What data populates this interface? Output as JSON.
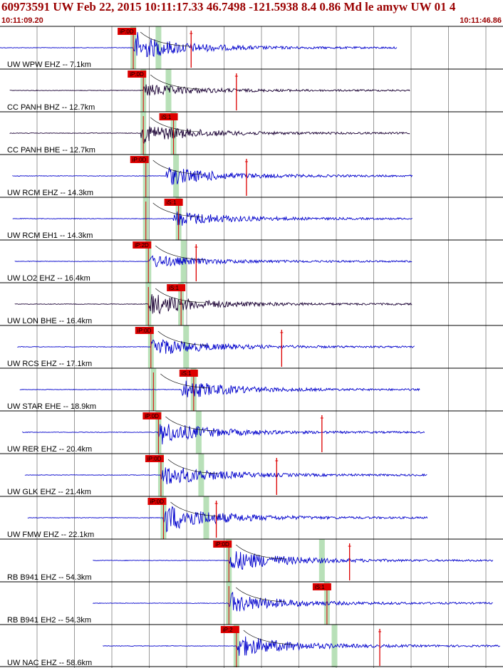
{
  "header": {
    "title": "60973591 UW Feb 22, 2015 10:11:17.33   46.7498 -121.5938  8.4 0.86 Md le amyw UW 01    4",
    "start_time": "10:11:09.20",
    "end_time": "10:11:46.86"
  },
  "colors": {
    "trace_vertical": "#0000cc",
    "trace_broadband": "#1a0033",
    "pick": "#dd0000",
    "window": "#b8e0b8",
    "grid": "#000000",
    "header_text": "#9a0000"
  },
  "chart_data": {
    "type": "seismogram",
    "time_window": [
      "10:11:09.20",
      "10:11:46.86"
    ],
    "grid": "vertical every ~1.3 s",
    "traces": [
      {
        "label": "UW WPW EHZ -- 7.1km",
        "color": "blue",
        "start": 0.0,
        "end": 0.79,
        "p_pick": "iP:0D",
        "p_time": 0.265,
        "s_time": 0.315,
        "onset": 0.265,
        "amp": 16,
        "event": 0.38
      },
      {
        "label": "CC PANH BHZ -- 12.7km",
        "color": "dark",
        "start": 0.02,
        "end": 0.815,
        "p_pick": "iP:0D",
        "p_time": 0.285,
        "s_time": 0.335,
        "onset": 0.285,
        "amp": 8,
        "event": 0.47
      },
      {
        "label": "CC PANH BHE -- 12.7km",
        "color": "dark",
        "start": 0.02,
        "end": 0.815,
        "p_pick": "iS:1",
        "p_time": 0.285,
        "s_time": 0.345,
        "onset": 0.28,
        "amp": 12,
        "event": null
      },
      {
        "label": "UW RCM EHZ -- 14.3km",
        "color": "blue",
        "start": 0.025,
        "end": 0.82,
        "p_pick": "iP:0D",
        "p_time": 0.29,
        "s_time": 0.35,
        "onset": 0.33,
        "amp": 12,
        "event": 0.49
      },
      {
        "label": "UW RCM EH1 -- 14.3km",
        "color": "blue",
        "start": 0.025,
        "end": 0.82,
        "p_pick": "iS:1",
        "p_time": 0.29,
        "s_time": 0.355,
        "onset": 0.345,
        "amp": 10,
        "event": null
      },
      {
        "label": "UW LO2 EHZ -- 16.4km",
        "color": "blue",
        "start": 0.03,
        "end": 0.82,
        "p_pick": "iP:2D",
        "p_time": 0.295,
        "s_time": 0.365,
        "onset": 0.295,
        "amp": 8,
        "event": 0.39
      },
      {
        "label": "UW LON BHE -- 16.4km",
        "color": "dark",
        "start": 0.03,
        "end": 0.82,
        "p_pick": "iS:1",
        "p_time": 0.295,
        "s_time": 0.36,
        "onset": 0.295,
        "amp": 14,
        "event": null
      },
      {
        "label": "UW RCS EHZ -- 17.1km",
        "color": "blue",
        "start": 0.035,
        "end": 0.825,
        "p_pick": "iP:0D",
        "p_time": 0.3,
        "s_time": 0.37,
        "onset": 0.3,
        "amp": 12,
        "event": 0.56
      },
      {
        "label": "UW STAR EHE -- 18.9km",
        "color": "blue",
        "start": 0.04,
        "end": 0.835,
        "p_pick": "iS:1",
        "p_time": 0.305,
        "s_time": 0.385,
        "onset": 0.36,
        "amp": 12,
        "event": null
      },
      {
        "label": "UW RER EHZ -- 20.4km",
        "color": "blue",
        "start": 0.045,
        "end": 0.845,
        "p_pick": "iP:0D",
        "p_time": 0.315,
        "s_time": 0.395,
        "onset": 0.315,
        "amp": 14,
        "event": 0.64
      },
      {
        "label": "UW GLK EHZ -- 21.4km",
        "color": "blue",
        "start": 0.05,
        "end": 0.85,
        "p_pick": "iP:0D",
        "p_time": 0.32,
        "s_time": 0.4,
        "onset": 0.32,
        "amp": 14,
        "event": 0.55
      },
      {
        "label": "UW FMW EHZ -- 22.1km",
        "color": "blue",
        "start": 0.055,
        "end": 0.85,
        "p_pick": "iP:0D",
        "p_time": 0.325,
        "s_time": 0.41,
        "onset": 0.325,
        "amp": 18,
        "event": 0.43
      },
      {
        "label": "RB B941 EHZ -- 54.3km",
        "color": "blue",
        "start": 0.185,
        "end": 0.98,
        "p_pick": "iP:0D",
        "p_time": 0.455,
        "s_time": 0.64,
        "onset": 0.455,
        "amp": 14,
        "event": 0.695
      },
      {
        "label": "RB B941 EH2 -- 54.3km",
        "color": "blue",
        "start": 0.185,
        "end": 0.98,
        "p_pick": "iS:1",
        "p_time": 0.455,
        "s_time": 0.65,
        "onset": 0.455,
        "amp": 12,
        "event": null
      },
      {
        "label": "UW NAC EHZ -- 58.6km",
        "color": "blue",
        "start": 0.205,
        "end": 0.995,
        "p_pick": "iP:2",
        "p_time": 0.47,
        "s_time": 0.665,
        "onset": 0.47,
        "amp": 14,
        "event": 0.755
      }
    ]
  }
}
